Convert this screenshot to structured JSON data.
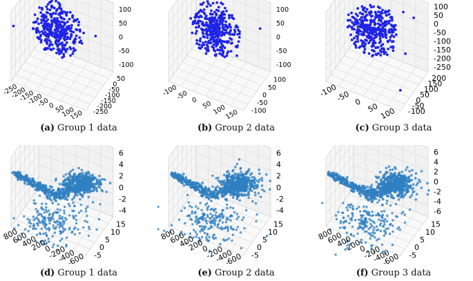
{
  "figure": {
    "panels": [
      {
        "id": "a",
        "label": "(a)",
        "caption": "Group 1 data"
      },
      {
        "id": "b",
        "label": "(b)",
        "caption": "Group 2 data"
      },
      {
        "id": "c",
        "label": "(c)",
        "caption": "Group 3 data"
      },
      {
        "id": "d",
        "label": "(d)",
        "caption": "Group 1 data"
      },
      {
        "id": "e",
        "label": "(e)",
        "caption": "Group 2 data"
      },
      {
        "id": "f",
        "label": "(f)",
        "caption": "Group 3 data"
      }
    ]
  },
  "chart_data": [
    {
      "id": "a",
      "type": "scatter",
      "projection": "3d",
      "color": "#1f24e6",
      "title": "Group 1 data",
      "cluster": {
        "center": [
          -20,
          -40,
          0
        ],
        "radius": [
          90,
          90,
          100
        ],
        "count": 330
      },
      "outliers": [
        [
          -250,
          -250,
          60
        ],
        [
          120,
          30,
          0
        ],
        [
          40,
          -110,
          -60
        ]
      ],
      "x_ticks": [
        "-250",
        "-200",
        "-150",
        "-100",
        "-50",
        "0",
        "50",
        "100",
        "150"
      ],
      "y_ticks": [
        "-250",
        "-200",
        "-150",
        "-100",
        "-50",
        "0",
        "50"
      ],
      "z_ticks": [
        "100",
        "50",
        "0",
        "-50",
        "-100"
      ]
    },
    {
      "id": "b",
      "type": "scatter",
      "projection": "3d",
      "color": "#1f24e6",
      "title": "Group 2 data",
      "cluster": {
        "center": [
          20,
          10,
          0
        ],
        "radius": [
          90,
          90,
          100
        ],
        "count": 360
      },
      "outliers": [
        [
          -90,
          60,
          -70
        ],
        [
          150,
          60,
          40
        ],
        [
          60,
          -60,
          -90
        ]
      ],
      "x_ticks": [
        "-100",
        "-50",
        "0",
        "50",
        "100",
        "150"
      ],
      "y_ticks": [
        "-100",
        "-50",
        "0",
        "50",
        "100"
      ],
      "z_ticks": [
        "100",
        "50",
        "0",
        "-50",
        "-100"
      ]
    },
    {
      "id": "c",
      "type": "scatter",
      "projection": "3d",
      "color": "#1f24e6",
      "title": "Group 3 data",
      "cluster": {
        "center": [
          -20,
          0,
          -60
        ],
        "radius": [
          90,
          90,
          100
        ],
        "count": 360
      },
      "outliers": [
        [
          120,
          80,
          80
        ],
        [
          60,
          80,
          90
        ],
        [
          120,
          -50,
          -60
        ],
        [
          110,
          -100,
          -250
        ]
      ],
      "x_ticks": [
        "-100",
        "-50",
        "0",
        "50",
        "100"
      ],
      "y_ticks": [
        "-100",
        "-50",
        "0",
        "50",
        "100",
        "150",
        "200"
      ],
      "z_ticks": [
        "100",
        "50",
        "0",
        "-50",
        "-100",
        "-150",
        "-200",
        "-250"
      ]
    },
    {
      "id": "d",
      "type": "scatter",
      "projection": "3d",
      "color": "#2f7fc1",
      "title": "Group 1 data",
      "x_ticks": [
        "800",
        "600",
        "400",
        "200",
        "0",
        "-200",
        "-400",
        "-600"
      ],
      "y_ticks": [
        "-5",
        "0",
        "5",
        "10",
        "15"
      ],
      "z_ticks": [
        "6",
        "4",
        "2",
        "0",
        "-2",
        "-4"
      ]
    },
    {
      "id": "e",
      "type": "scatter",
      "projection": "3d",
      "color": "#2f7fc1",
      "title": "Group 2 data",
      "x_ticks": [
        "800",
        "600",
        "400",
        "200",
        "0",
        "-200",
        "-400",
        "-600"
      ],
      "y_ticks": [
        "-5",
        "0",
        "5",
        "10",
        "15"
      ],
      "z_ticks": [
        "6",
        "4",
        "2",
        "0",
        "-2",
        "-4"
      ]
    },
    {
      "id": "f",
      "type": "scatter",
      "projection": "3d",
      "color": "#2f7fc1",
      "title": "Group 3 data",
      "x_ticks": [
        "800",
        "600",
        "400",
        "200",
        "0",
        "-200",
        "-400",
        "-600"
      ],
      "y_ticks": [
        "-5",
        "0",
        "5",
        "10",
        "15"
      ],
      "z_ticks": [
        "6",
        "4",
        "2",
        "0",
        "-2",
        "-4",
        "-6"
      ]
    }
  ]
}
